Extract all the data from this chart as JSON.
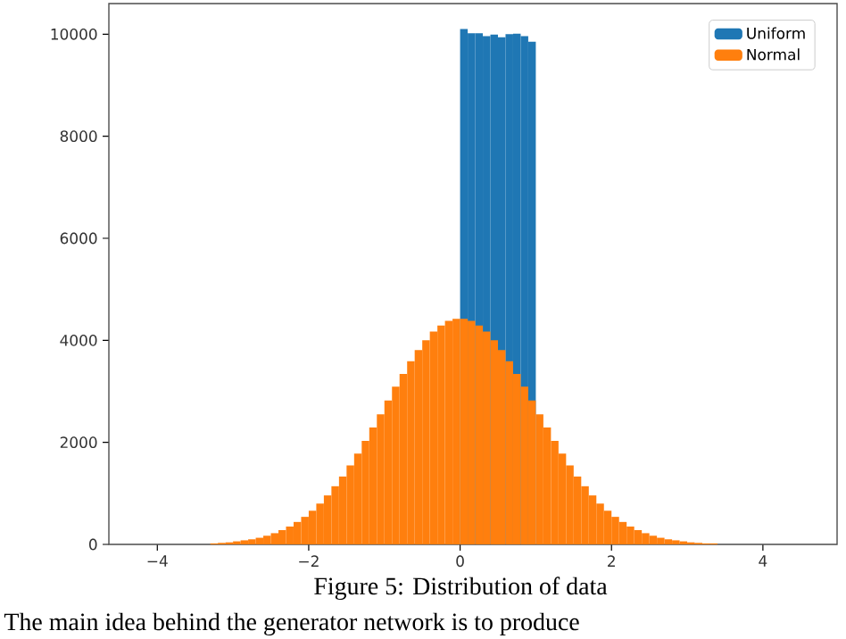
{
  "chart_data": {
    "type": "histogram",
    "series": [
      {
        "name": "Uniform",
        "color": "#1f77b4",
        "values": [
          null,
          null,
          null,
          null,
          null,
          null,
          null,
          null,
          null,
          null,
          null,
          null,
          null,
          null,
          null,
          null,
          null,
          null,
          null,
          null,
          null,
          null,
          null,
          null,
          null,
          null,
          null,
          null,
          null,
          null,
          null,
          null,
          null,
          10100,
          10020,
          10020,
          9960,
          9990,
          9940,
          10000,
          10010,
          9960,
          9850,
          null,
          null,
          null,
          null,
          null,
          null,
          null,
          null,
          null,
          null,
          null,
          null,
          null,
          null,
          null,
          null,
          null,
          null,
          null,
          null,
          null,
          null,
          null,
          null
        ]
      },
      {
        "name": "Normal",
        "color": "#ff7f0e",
        "values": [
          20,
          30,
          40,
          60,
          80,
          100,
          130,
          170,
          220,
          280,
          350,
          440,
          540,
          660,
          800,
          960,
          1140,
          1330,
          1550,
          1780,
          2030,
          2290,
          2550,
          2820,
          3090,
          3340,
          3590,
          3810,
          4000,
          4170,
          4290,
          4380,
          4420,
          4420,
          4380,
          4290,
          4170,
          4000,
          3810,
          3590,
          3340,
          3090,
          2820,
          2550,
          2290,
          2030,
          1780,
          1550,
          1330,
          1140,
          960,
          800,
          660,
          540,
          440,
          350,
          280,
          220,
          170,
          130,
          100,
          80,
          60,
          40,
          30,
          20,
          20
        ]
      }
    ],
    "bins": [
      -3.3,
      -3.2,
      -3.1,
      -3.0,
      -2.9,
      -2.8,
      -2.7,
      -2.6,
      -2.5,
      -2.4,
      -2.3,
      -2.2,
      -2.1,
      -2.0,
      -1.9,
      -1.8,
      -1.7,
      -1.6,
      -1.5,
      -1.4,
      -1.3,
      -1.2,
      -1.1,
      -1.0,
      -0.9,
      -0.8,
      -0.7,
      -0.6,
      -0.5,
      -0.4,
      -0.3,
      -0.2,
      -0.1,
      0.0,
      0.1,
      0.2,
      0.3,
      0.4,
      0.5,
      0.6,
      0.7,
      0.8,
      0.9,
      1.0,
      1.1,
      1.2,
      1.3,
      1.4,
      1.5,
      1.6,
      1.7,
      1.8,
      1.9,
      2.0,
      2.1,
      2.2,
      2.3,
      2.4,
      2.5,
      2.6,
      2.7,
      2.8,
      2.9,
      3.0,
      3.1,
      3.2,
      3.3,
      3.4
    ],
    "xlim": [
      -4.64,
      4.98
    ],
    "ylim": [
      0,
      10600
    ],
    "xticks": [
      {
        "value": -4,
        "label": "−4"
      },
      {
        "value": -2,
        "label": "−2"
      },
      {
        "value": 0,
        "label": "0"
      },
      {
        "value": 2,
        "label": "2"
      },
      {
        "value": 4,
        "label": "4"
      }
    ],
    "yticks": [
      {
        "value": 0,
        "label": "0"
      },
      {
        "value": 2000,
        "label": "2000"
      },
      {
        "value": 4000,
        "label": "4000"
      },
      {
        "value": 6000,
        "label": "6000"
      },
      {
        "value": 8000,
        "label": "8000"
      },
      {
        "value": 10000,
        "label": "10000"
      }
    ],
    "legend": "top right",
    "annotations": [
      "Figure 5: Distribution of data",
      "The main idea behind the generator network is to produce"
    ]
  }
}
